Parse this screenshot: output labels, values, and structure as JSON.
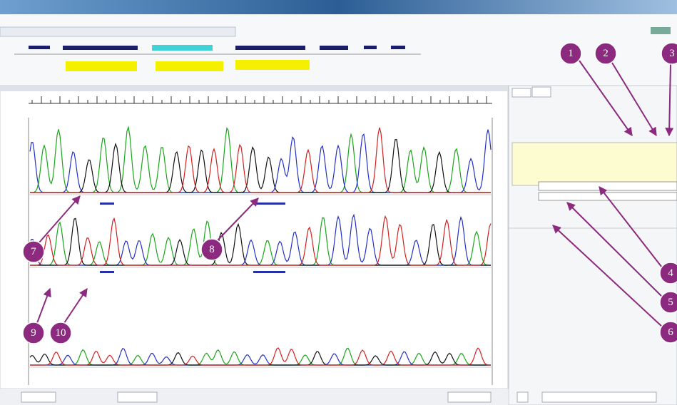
{
  "callouts": [
    {
      "label": "1"
    },
    {
      "label": "2"
    },
    {
      "label": "3"
    },
    {
      "label": "4"
    },
    {
      "label": "5"
    },
    {
      "label": "6"
    },
    {
      "label": "7"
    },
    {
      "label": "8"
    },
    {
      "label": "9"
    },
    {
      "label": "10"
    }
  ]
}
